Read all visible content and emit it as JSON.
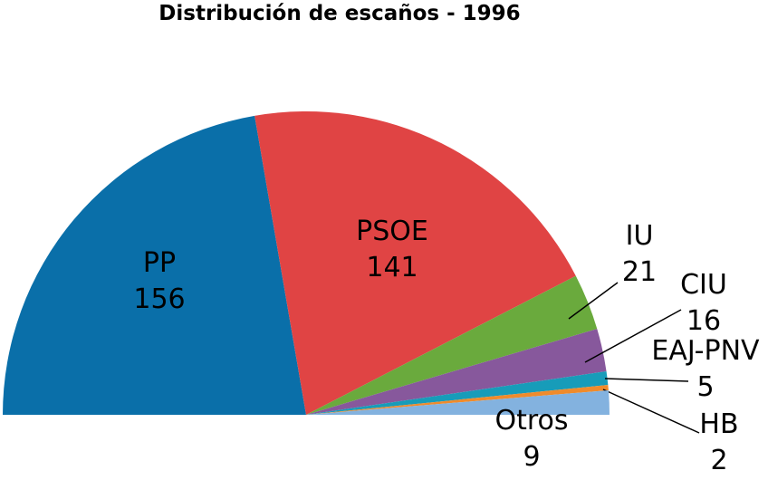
{
  "chart_data": {
    "type": "pie",
    "subtype": "semicircle",
    "title": "Distribución de escaños - 1996",
    "total": 350,
    "series": [
      {
        "name": "PP",
        "value": 156,
        "color": "#0a6fa9"
      },
      {
        "name": "PSOE",
        "value": 141,
        "color": "#e04444"
      },
      {
        "name": "IU",
        "value": 21,
        "color": "#6aaa3d"
      },
      {
        "name": "CIU",
        "value": 16,
        "color": "#87589c"
      },
      {
        "name": "EAJ-PNV",
        "value": 5,
        "color": "#179cb9"
      },
      {
        "name": "HB",
        "value": 2,
        "color": "#ef8b2c"
      },
      {
        "name": "Otros",
        "value": 9,
        "color": "#83b2df"
      }
    ]
  }
}
